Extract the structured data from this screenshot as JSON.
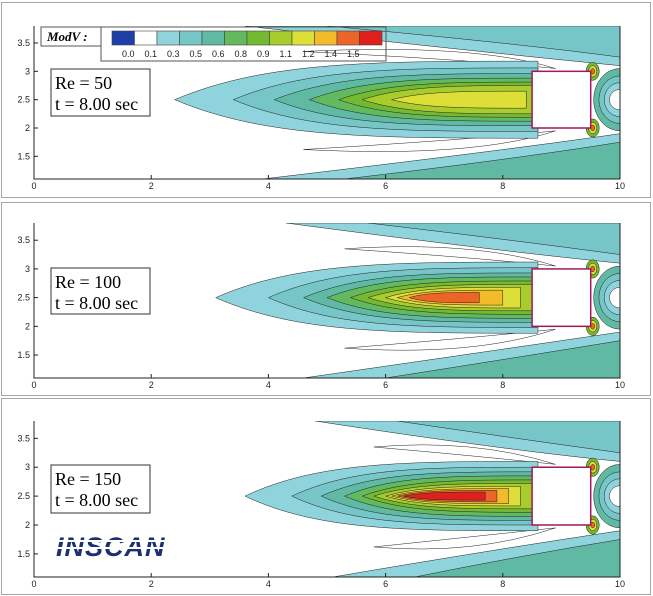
{
  "logo": {
    "text": "INSCAN",
    "color": "#1c2f6e"
  },
  "chart_data": {
    "type": "heatmap",
    "variable_label": "ModV :",
    "legend": {
      "levels": [
        "0.0",
        "0.1",
        "0.3",
        "0.5",
        "0.6",
        "0.8",
        "0.9",
        "1.1",
        "1.2",
        "1.4",
        "1.5"
      ],
      "colors": [
        "#1f3fa8",
        "#ffffff",
        "#8fd3dc",
        "#76c6c8",
        "#5fb9a3",
        "#63b95d",
        "#74b932",
        "#a8cb2d",
        "#dddf38",
        "#f2bb2a",
        "#ed6428",
        "#e0201c"
      ]
    },
    "x_ticks": [
      0,
      2,
      4,
      6,
      8,
      10
    ],
    "y_ticks": [
      1.5,
      2,
      2.5,
      3,
      3.5
    ],
    "xlim": [
      0,
      10
    ],
    "ylim": [
      1.1,
      3.8
    ],
    "obstacle": {
      "x0": 8.5,
      "x1": 9.5,
      "y0": 2.0,
      "y1": 3.0,
      "edge_color": "#a0185a"
    },
    "panels": [
      {
        "re_label": "Re = 50",
        "t_label": "t = 8.00 sec",
        "peak_level": 8,
        "bands": [
          {
            "x0": 2.4,
            "x1": 8.6,
            "h": 0.68,
            "level": 2
          },
          {
            "x0": 3.4,
            "x1": 8.6,
            "h": 0.56,
            "level": 3
          },
          {
            "x0": 4.1,
            "x1": 8.6,
            "h": 0.46,
            "level": 4
          },
          {
            "x0": 4.7,
            "x1": 8.6,
            "h": 0.38,
            "level": 5
          },
          {
            "x0": 5.2,
            "x1": 8.6,
            "h": 0.31,
            "level": 6
          },
          {
            "x0": 5.6,
            "x1": 8.6,
            "h": 0.25,
            "level": 7
          },
          {
            "x0": 6.1,
            "x1": 8.4,
            "h": 0.15,
            "level": 8
          }
        ]
      },
      {
        "re_label": "Re = 100",
        "t_label": "t = 8.00 sec",
        "peak_level": 10,
        "bands": [
          {
            "x0": 3.1,
            "x1": 8.6,
            "h": 0.62,
            "level": 2
          },
          {
            "x0": 4.0,
            "x1": 8.6,
            "h": 0.52,
            "level": 3
          },
          {
            "x0": 4.6,
            "x1": 8.6,
            "h": 0.43,
            "level": 4
          },
          {
            "x0": 5.0,
            "x1": 8.6,
            "h": 0.36,
            "level": 5
          },
          {
            "x0": 5.4,
            "x1": 8.6,
            "h": 0.29,
            "level": 6
          },
          {
            "x0": 5.7,
            "x1": 8.5,
            "h": 0.23,
            "level": 7
          },
          {
            "x0": 6.0,
            "x1": 8.3,
            "h": 0.18,
            "level": 8
          },
          {
            "x0": 6.2,
            "x1": 8.0,
            "h": 0.13,
            "level": 9
          },
          {
            "x0": 6.4,
            "x1": 7.6,
            "h": 0.09,
            "level": 10
          }
        ]
      },
      {
        "re_label": "Re = 150",
        "t_label": "t = 8.00 sec",
        "peak_level": 11,
        "bands": [
          {
            "x0": 3.6,
            "x1": 8.6,
            "h": 0.6,
            "level": 2
          },
          {
            "x0": 4.4,
            "x1": 8.6,
            "h": 0.5,
            "level": 3
          },
          {
            "x0": 4.9,
            "x1": 8.6,
            "h": 0.42,
            "level": 4
          },
          {
            "x0": 5.3,
            "x1": 8.6,
            "h": 0.35,
            "level": 5
          },
          {
            "x0": 5.6,
            "x1": 8.6,
            "h": 0.28,
            "level": 6
          },
          {
            "x0": 5.8,
            "x1": 8.5,
            "h": 0.22,
            "level": 7
          },
          {
            "x0": 6.0,
            "x1": 8.3,
            "h": 0.17,
            "level": 8
          },
          {
            "x0": 6.1,
            "x1": 8.1,
            "h": 0.13,
            "level": 9
          },
          {
            "x0": 6.2,
            "x1": 7.9,
            "h": 0.1,
            "level": 10
          },
          {
            "x0": 6.3,
            "x1": 7.7,
            "h": 0.07,
            "level": 11
          }
        ]
      }
    ]
  }
}
